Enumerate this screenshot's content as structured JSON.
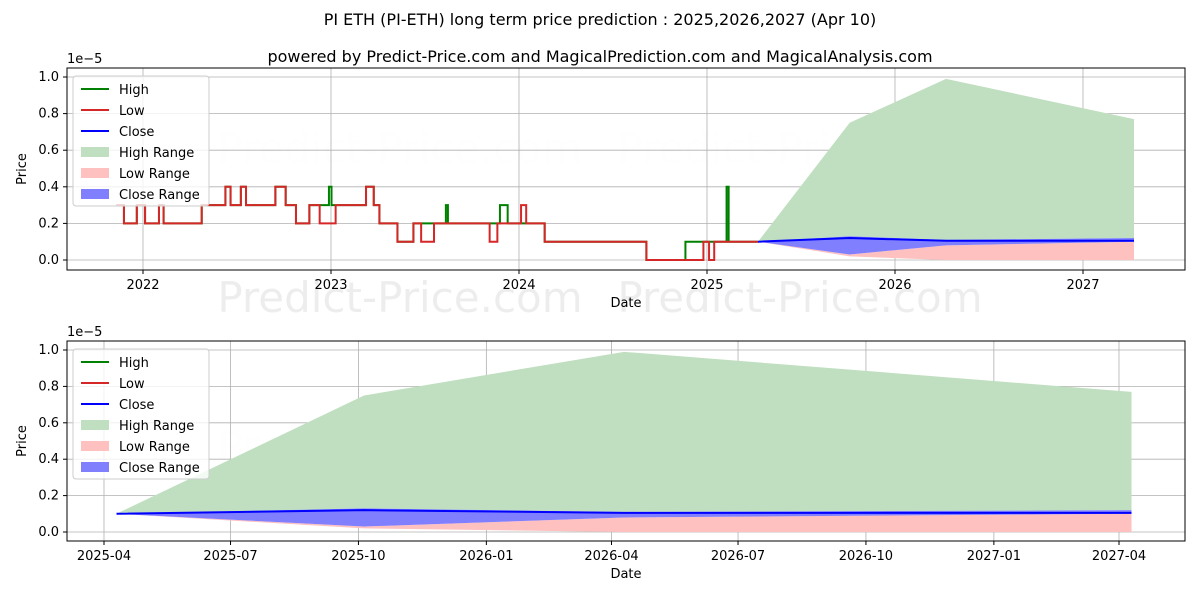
{
  "title": "PI ETH (PI-ETH) long term price prediction : 2025,2026,2027 (Apr 10)",
  "subtitle": "powered by Predict-Price.com and MagicalPrediction.com and MagicalAnalysis.com",
  "watermark": "Predict-Price.com",
  "colors": {
    "high": "#008000",
    "low": "#d62728",
    "close": "#0000ff",
    "high_range": "#c0dfc0",
    "low_range": "#ffc0c0",
    "close_range": "#8080ff"
  },
  "chart_data": [
    {
      "type": "line",
      "ylabel": "Price",
      "xlabel": "Date",
      "y_scale_label": "1e−5",
      "ylim": [
        -0.05,
        1.05
      ],
      "yticks": [
        "0.0",
        "0.2",
        "0.4",
        "0.6",
        "0.8",
        "1.0"
      ],
      "xticks": [
        "2022",
        "2023",
        "2024",
        "2025",
        "2026",
        "2027"
      ],
      "legend": [
        "High",
        "Low",
        "Close",
        "High Range",
        "Low Range",
        "Close Range"
      ],
      "legend_position": "upper-left",
      "history_low": [
        [
          "2021-11-10",
          0.3
        ],
        [
          "2021-11-25",
          0.2
        ],
        [
          "2021-12-20",
          0.3
        ],
        [
          "2022-01-05",
          0.2
        ],
        [
          "2022-02-01",
          0.3
        ],
        [
          "2022-02-10",
          0.2
        ],
        [
          "2022-04-25",
          0.3
        ],
        [
          "2022-06-10",
          0.4
        ],
        [
          "2022-06-20",
          0.3
        ],
        [
          "2022-07-10",
          0.4
        ],
        [
          "2022-07-20",
          0.3
        ],
        [
          "2022-09-15",
          0.4
        ],
        [
          "2022-10-05",
          0.3
        ],
        [
          "2022-10-25",
          0.2
        ],
        [
          "2022-11-20",
          0.3
        ],
        [
          "2022-12-10",
          0.2
        ],
        [
          "2023-01-10",
          0.3
        ],
        [
          "2023-03-10",
          0.4
        ],
        [
          "2023-03-25",
          0.3
        ],
        [
          "2023-04-05",
          0.2
        ],
        [
          "2023-05-10",
          0.1
        ],
        [
          "2023-06-10",
          0.2
        ],
        [
          "2023-06-25",
          0.1
        ],
        [
          "2023-07-20",
          0.2
        ],
        [
          "2023-11-05",
          0.1
        ],
        [
          "2023-11-20",
          0.2
        ],
        [
          "2024-01-05",
          0.3
        ],
        [
          "2024-01-15",
          0.2
        ],
        [
          "2024-02-20",
          0.1
        ],
        [
          "2024-09-05",
          0.0
        ],
        [
          "2024-12-25",
          0.1
        ],
        [
          "2025-01-05",
          0.0
        ],
        [
          "2025-01-15",
          0.1
        ],
        [
          "2025-04-10",
          0.1
        ]
      ],
      "history_high": [
        [
          "2021-11-10",
          0.3
        ],
        [
          "2021-11-25",
          0.2
        ],
        [
          "2021-12-20",
          0.3
        ],
        [
          "2022-01-05",
          0.2
        ],
        [
          "2022-02-01",
          0.3
        ],
        [
          "2022-02-10",
          0.2
        ],
        [
          "2022-04-25",
          0.3
        ],
        [
          "2022-06-10",
          0.4
        ],
        [
          "2022-06-20",
          0.3
        ],
        [
          "2022-07-10",
          0.4
        ],
        [
          "2022-07-20",
          0.3
        ],
        [
          "2022-09-15",
          0.4
        ],
        [
          "2022-10-05",
          0.3
        ],
        [
          "2022-10-25",
          0.2
        ],
        [
          "2022-11-20",
          0.3
        ],
        [
          "2022-12-28",
          0.4
        ],
        [
          "2023-01-02",
          0.3
        ],
        [
          "2023-03-10",
          0.4
        ],
        [
          "2023-03-25",
          0.3
        ],
        [
          "2023-04-05",
          0.2
        ],
        [
          "2023-05-10",
          0.1
        ],
        [
          "2023-06-10",
          0.2
        ],
        [
          "2023-08-12",
          0.3
        ],
        [
          "2023-08-16",
          0.2
        ],
        [
          "2023-11-25",
          0.3
        ],
        [
          "2023-12-10",
          0.2
        ],
        [
          "2024-02-20",
          0.1
        ],
        [
          "2024-09-05",
          0.0
        ],
        [
          "2024-11-20",
          0.1
        ],
        [
          "2025-02-08",
          0.4
        ],
        [
          "2025-02-12",
          0.1
        ],
        [
          "2025-04-10",
          0.1
        ]
      ]
    },
    {
      "type": "area",
      "ylabel": "Price",
      "xlabel": "Date",
      "y_scale_label": "1e−5",
      "ylim": [
        -0.05,
        1.05
      ],
      "yticks": [
        "0.0",
        "0.2",
        "0.4",
        "0.6",
        "0.8",
        "1.0"
      ],
      "xticks": [
        "2025-04",
        "2025-07",
        "2025-10",
        "2026-01",
        "2026-04",
        "2026-07",
        "2026-10",
        "2027-01",
        "2027-04"
      ],
      "legend": [
        "High",
        "Low",
        "Close",
        "High Range",
        "Low Range",
        "Close Range"
      ],
      "legend_position": "upper-left",
      "dates": [
        "2025-04-10",
        "2025-10-05",
        "2026-04-10",
        "2027-04-10"
      ],
      "high": [
        0.1,
        0.75,
        0.99,
        0.77
      ],
      "low_bottom": [
        0.1,
        0.02,
        0.0,
        0.0
      ],
      "close_range_low": [
        0.1,
        0.03,
        0.08,
        0.1
      ],
      "close_range_high": [
        0.1,
        0.13,
        0.11,
        0.12
      ],
      "close": [
        0.1,
        0.12,
        0.105,
        0.105
      ]
    }
  ]
}
